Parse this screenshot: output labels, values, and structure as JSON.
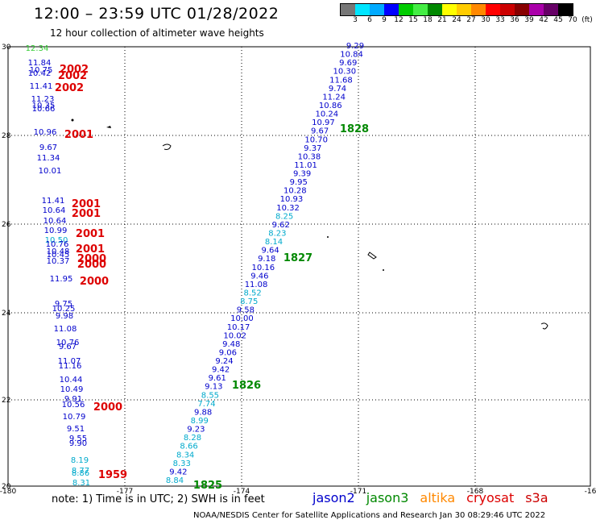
{
  "header": {
    "title": "12:00 – 23:59 UTC 01/28/2022",
    "subtitle": "12 hour collection of altimeter wave heights"
  },
  "scale": {
    "colors": [
      "#777777",
      "#00e5ff",
      "#00aaff",
      "#0000ff",
      "#00cc00",
      "#44ee44",
      "#008800",
      "#ffff00",
      "#ffcc00",
      "#ff8800",
      "#ff0000",
      "#cc0000",
      "#880000",
      "#aa00aa",
      "#660066",
      "#000000"
    ],
    "labels": [
      "3",
      "6",
      "9",
      "12",
      "15",
      "18",
      "21",
      "24",
      "27",
      "30",
      "33",
      "36",
      "39",
      "42",
      "45",
      "70",
      "(ft)"
    ]
  },
  "axes": {
    "x_ticks": [
      "-180",
      "-177",
      "-174",
      "-171",
      "-168",
      "-16"
    ],
    "y_ticks": [
      "30",
      "28",
      "26",
      "24",
      "22",
      "20"
    ]
  },
  "colors": {
    "jason2": "#0000cc",
    "jason3": "#008800",
    "altika": "#ff8800",
    "cryosat": "#dd0000",
    "s3a": "#cc0000",
    "light": "#00aacc",
    "green_light": "#33cc33"
  },
  "track_main": [
    {
      "v": "9.29",
      "c": "jason2"
    },
    {
      "v": "10.84",
      "c": "jason2"
    },
    {
      "v": "9.69",
      "c": "jason2"
    },
    {
      "v": "10.30",
      "c": "jason2"
    },
    {
      "v": "11.68",
      "c": "jason2"
    },
    {
      "v": "9.74",
      "c": "jason2"
    },
    {
      "v": "11.24",
      "c": "jason2"
    },
    {
      "v": "10.86",
      "c": "jason2"
    },
    {
      "v": "10.24",
      "c": "jason2"
    },
    {
      "v": "10.97",
      "c": "jason2"
    },
    {
      "v": "9.67",
      "c": "jason2"
    },
    {
      "v": "10.70",
      "c": "jason2"
    },
    {
      "v": "9.37",
      "c": "jason2"
    },
    {
      "v": "10.38",
      "c": "jason2"
    },
    {
      "v": "11.01",
      "c": "jason2"
    },
    {
      "v": "9.39",
      "c": "jason2"
    },
    {
      "v": "9.95",
      "c": "jason2"
    },
    {
      "v": "10.28",
      "c": "jason2"
    },
    {
      "v": "10.93",
      "c": "jason2"
    },
    {
      "v": "10.32",
      "c": "jason2"
    },
    {
      "v": "8.25",
      "c": "light"
    },
    {
      "v": "9.62",
      "c": "jason2"
    },
    {
      "v": "8.23",
      "c": "light"
    },
    {
      "v": "8.14",
      "c": "light"
    },
    {
      "v": "9.64",
      "c": "jason2"
    },
    {
      "v": "9.18",
      "c": "jason2"
    },
    {
      "v": "10.16",
      "c": "jason2"
    },
    {
      "v": "9.46",
      "c": "jason2"
    },
    {
      "v": "11.08",
      "c": "jason2"
    },
    {
      "v": "8.52",
      "c": "light"
    },
    {
      "v": "8.75",
      "c": "light"
    },
    {
      "v": "9.58",
      "c": "jason2"
    },
    {
      "v": "10.00",
      "c": "jason2"
    },
    {
      "v": "10.17",
      "c": "jason2"
    },
    {
      "v": "10.02",
      "c": "jason2"
    },
    {
      "v": "9.48",
      "c": "jason2"
    },
    {
      "v": "9.06",
      "c": "jason2"
    },
    {
      "v": "9.24",
      "c": "jason2"
    },
    {
      "v": "9.42",
      "c": "jason2"
    },
    {
      "v": "9.61",
      "c": "jason2"
    },
    {
      "v": "9.13",
      "c": "jason2"
    },
    {
      "v": "8.55",
      "c": "light"
    },
    {
      "v": "7.74",
      "c": "light"
    },
    {
      "v": "9.88",
      "c": "jason2"
    },
    {
      "v": "8.99",
      "c": "light"
    },
    {
      "v": "9.23",
      "c": "jason2"
    },
    {
      "v": "8.28",
      "c": "light"
    },
    {
      "v": "8.66",
      "c": "light"
    },
    {
      "v": "8.34",
      "c": "light"
    },
    {
      "v": "8.33",
      "c": "light"
    },
    {
      "v": "9.42",
      "c": "jason2"
    },
    {
      "v": "8.84",
      "c": "light"
    }
  ],
  "track_left": [
    {
      "v": "12.34",
      "c": "green_light"
    },
    {
      "v": "11.84",
      "c": "jason2"
    },
    {
      "v": "10.75",
      "c": "jason2"
    },
    {
      "v": "10.42",
      "c": "jason2"
    },
    {
      "v": "11.41",
      "c": "jason2"
    },
    {
      "v": "11.23",
      "c": "jason2"
    },
    {
      "v": "10.35",
      "c": "jason2"
    },
    {
      "v": "10.66",
      "c": "jason2"
    },
    {
      "v": "10.96",
      "c": "jason2"
    },
    {
      "v": "9.67",
      "c": "jason2"
    },
    {
      "v": "11.34",
      "c": "jason2"
    },
    {
      "v": "10.01",
      "c": "jason2"
    },
    {
      "v": "11.41",
      "c": "jason2"
    },
    {
      "v": "10.64",
      "c": "jason2"
    },
    {
      "v": "10.64",
      "c": "jason2"
    },
    {
      "v": "10.99",
      "c": "jason2"
    },
    {
      "v": "10.50",
      "c": "light"
    },
    {
      "v": "10.76",
      "c": "jason2"
    },
    {
      "v": "10.48",
      "c": "jason2"
    },
    {
      "v": "10.45",
      "c": "jason2"
    },
    {
      "v": "10.37",
      "c": "jason2"
    },
    {
      "v": "11.95",
      "c": "jason2"
    },
    {
      "v": "9.75",
      "c": "jason2"
    },
    {
      "v": "10.25",
      "c": "jason2"
    },
    {
      "v": "9.98",
      "c": "jason2"
    },
    {
      "v": "11.08",
      "c": "jason2"
    },
    {
      "v": "10.76",
      "c": "jason2"
    },
    {
      "v": "9.67",
      "c": "jason2"
    },
    {
      "v": "11.07",
      "c": "jason2"
    },
    {
      "v": "11.16",
      "c": "jason2"
    },
    {
      "v": "10.44",
      "c": "jason2"
    },
    {
      "v": "10.49",
      "c": "jason2"
    },
    {
      "v": "9.91",
      "c": "jason2"
    },
    {
      "v": "10.56",
      "c": "jason2"
    },
    {
      "v": "10.79",
      "c": "jason2"
    },
    {
      "v": "9.51",
      "c": "jason2"
    },
    {
      "v": "9.55",
      "c": "jason2"
    },
    {
      "v": "9.90",
      "c": "jason2"
    },
    {
      "v": "8.19",
      "c": "light"
    },
    {
      "v": "8.77",
      "c": "light"
    },
    {
      "v": "8.86",
      "c": "light"
    },
    {
      "v": "8.31",
      "c": "light"
    }
  ],
  "time_labels": [
    {
      "t": "2002",
      "c": "cryosat"
    },
    {
      "t": "2002",
      "c": "cryosat"
    },
    {
      "t": "2002",
      "c": "cryosat"
    },
    {
      "t": "2001",
      "c": "cryosat"
    },
    {
      "t": "2001",
      "c": "cryosat"
    },
    {
      "t": "2001",
      "c": "cryosat"
    },
    {
      "t": "2001",
      "c": "cryosat"
    },
    {
      "t": "2001",
      "c": "cryosat"
    },
    {
      "t": "2000",
      "c": "cryosat"
    },
    {
      "t": "2000",
      "c": "cryosat"
    },
    {
      "t": "2000",
      "c": "cryosat"
    },
    {
      "t": "2000",
      "c": "cryosat"
    },
    {
      "t": "1959",
      "c": "cryosat"
    },
    {
      "t": "1828",
      "c": "jason3"
    },
    {
      "t": "1827",
      "c": "jason3"
    },
    {
      "t": "1826",
      "c": "jason3"
    },
    {
      "t": "1825",
      "c": "jason3"
    }
  ],
  "footer": {
    "note": "note:  1) Time is in UTC;  2) SWH is in feet",
    "satellites": [
      {
        "name": "jason2",
        "color": "#0000cc"
      },
      {
        "name": "jason3",
        "color": "#008800"
      },
      {
        "name": "altika",
        "color": "#ff8800"
      },
      {
        "name": "cryosat",
        "color": "#dd0000"
      },
      {
        "name": "s3a",
        "color": "#cc0000"
      }
    ],
    "credit": "NOAA/NESDIS Center for Satellite Applications and Research    Jan 30 08:29:46 UTC 2022"
  }
}
